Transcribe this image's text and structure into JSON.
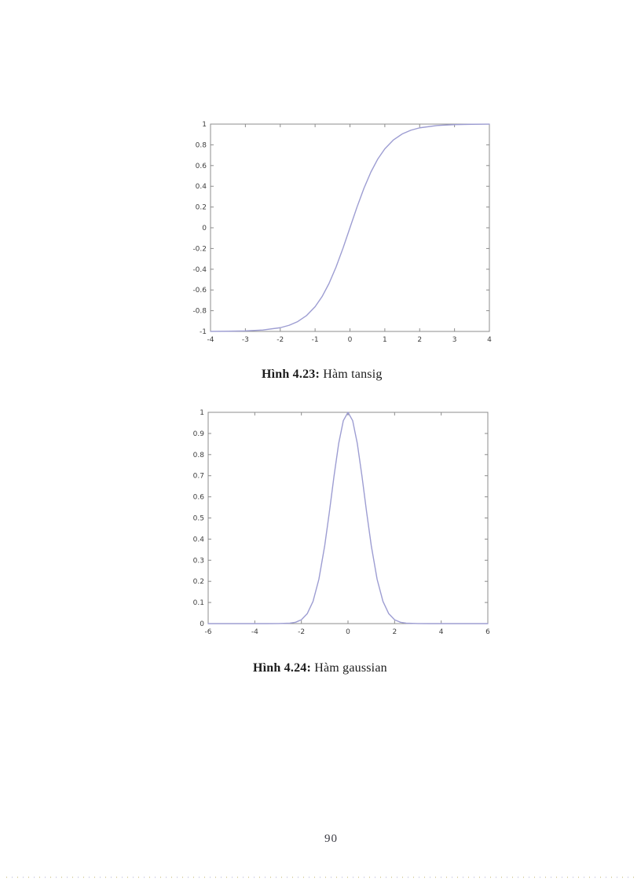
{
  "page": {
    "number": "90"
  },
  "figures": [
    {
      "caption_label": "Hình 4.23:",
      "caption_text": "Hàm tansig"
    },
    {
      "caption_label": "Hình 4.24:",
      "caption_text": "Hàm gaussian"
    }
  ],
  "colors": {
    "axis": "#8c8c8c",
    "tick_label": "#3d3d3d",
    "curve": "#9d9dd2",
    "dotted_line_tan": "#d6cc9c",
    "dotted_line_lavender": "#c9c9e2"
  },
  "chart_data": [
    {
      "type": "line",
      "title": "",
      "xlabel": "",
      "ylabel": "",
      "xlim": [
        -4,
        4
      ],
      "ylim": [
        -1,
        1
      ],
      "xticks": [
        -4,
        -3,
        -2,
        -1,
        0,
        1,
        2,
        3,
        4
      ],
      "yticks": [
        1,
        0.8,
        0.6,
        0.4,
        0.2,
        0,
        -0.2,
        -0.4,
        -0.6,
        -0.8,
        -1
      ],
      "grid": false,
      "legend": false,
      "line_color": "#9d9dd2",
      "series": [
        {
          "name": "tansig",
          "x": [
            -4,
            -3.5,
            -3,
            -2.5,
            -2,
            -1.75,
            -1.5,
            -1.25,
            -1,
            -0.8,
            -0.6,
            -0.4,
            -0.2,
            0,
            0.2,
            0.4,
            0.6,
            0.8,
            1,
            1.25,
            1.5,
            1.75,
            2,
            2.5,
            3,
            3.5,
            4
          ],
          "y": [
            -0.9993,
            -0.9982,
            -0.9951,
            -0.9866,
            -0.964,
            -0.9414,
            -0.9051,
            -0.8483,
            -0.7616,
            -0.664,
            -0.537,
            -0.3799,
            -0.1974,
            0,
            0.1974,
            0.3799,
            0.537,
            0.664,
            0.7616,
            0.8483,
            0.9051,
            0.9414,
            0.964,
            0.9866,
            0.9951,
            0.9982,
            0.9993
          ]
        }
      ]
    },
    {
      "type": "line",
      "title": "",
      "xlabel": "",
      "ylabel": "",
      "xlim": [
        -6,
        6
      ],
      "ylim": [
        0,
        1
      ],
      "xticks": [
        -6,
        -4,
        -2,
        0,
        2,
        4,
        6
      ],
      "yticks": [
        1,
        0.9,
        0.8,
        0.7,
        0.6,
        0.5,
        0.4,
        0.3,
        0.2,
        0.1,
        0
      ],
      "grid": false,
      "legend": false,
      "line_color": "#9d9dd2",
      "series": [
        {
          "name": "gaussian",
          "x": [
            -6,
            -5,
            -4,
            -3.5,
            -3,
            -2.5,
            -2.25,
            -2,
            -1.75,
            -1.5,
            -1.25,
            -1,
            -0.8,
            -0.6,
            -0.4,
            -0.2,
            0,
            0.2,
            0.4,
            0.6,
            0.8,
            1,
            1.25,
            1.5,
            1.75,
            2,
            2.25,
            2.5,
            3,
            3.5,
            4,
            5,
            6
          ],
          "y": [
            0,
            0,
            0,
            0,
            0.0001,
            0.0019,
            0.0063,
            0.0183,
            0.0468,
            0.1054,
            0.2096,
            0.3679,
            0.5273,
            0.6977,
            0.8521,
            0.9608,
            1,
            0.9608,
            0.8521,
            0.6977,
            0.5273,
            0.3679,
            0.2096,
            0.1054,
            0.0468,
            0.0183,
            0.0063,
            0.0019,
            0.0001,
            0,
            0,
            0,
            0
          ]
        }
      ]
    }
  ]
}
